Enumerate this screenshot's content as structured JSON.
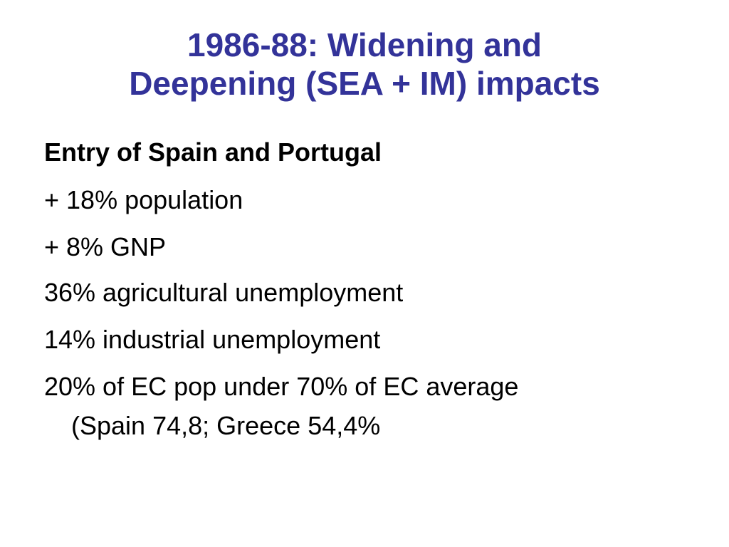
{
  "slide": {
    "title": [
      "1986-88: Widening and",
      "Deepening (SEA + IM) impacts"
    ],
    "heading": "Entry of Spain and Portugal",
    "items": [
      "+ 18% population",
      "+ 8% GNP",
      "36% agricultural unemployment",
      "14% industrial unemployment"
    ],
    "last_item": [
      "20% of EC pop under 70% of EC average",
      "(Spain 74,8; Greece 54,4%"
    ]
  }
}
